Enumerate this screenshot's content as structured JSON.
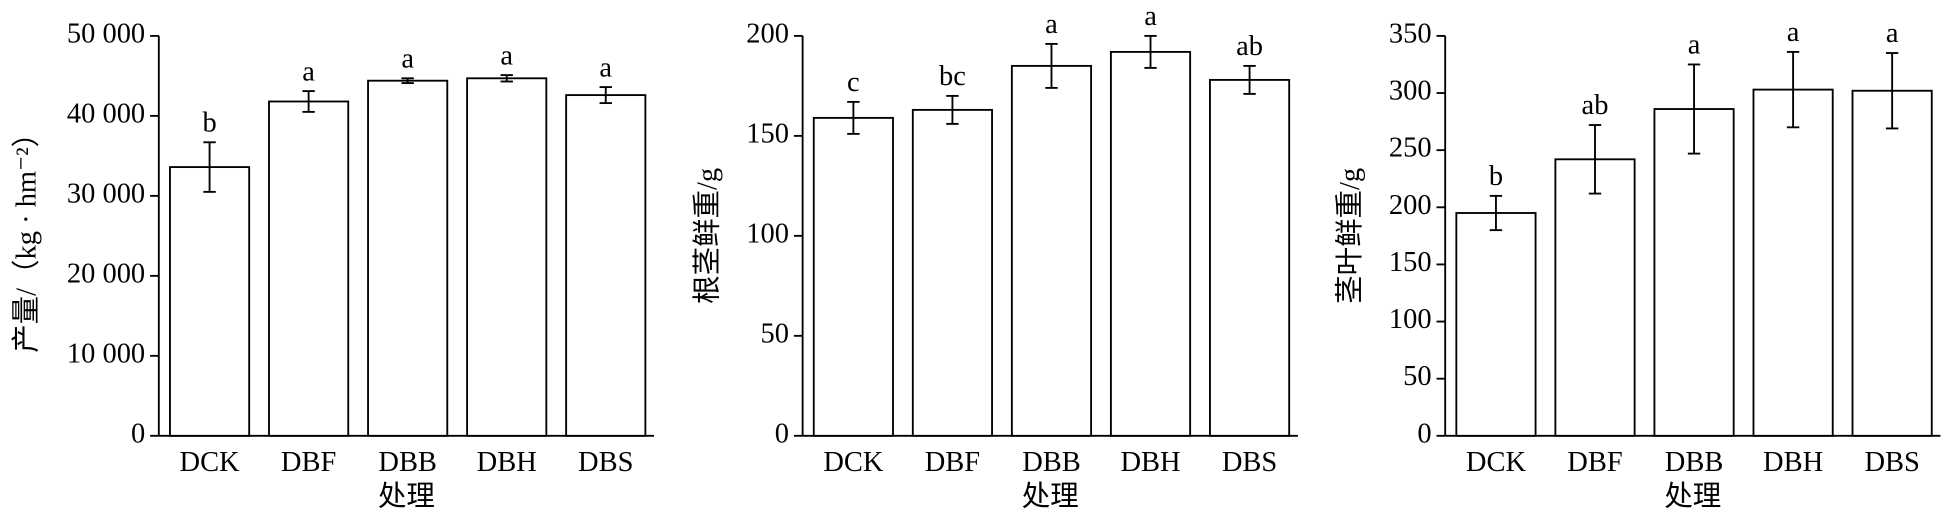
{
  "chart_data": [
    {
      "type": "bar",
      "y_label": "产量/（kg · hm⁻²）",
      "x_label": "处理",
      "categories": [
        "DCK",
        "DBF",
        "DBB",
        "DBH",
        "DBS"
      ],
      "values": [
        33600,
        41800,
        44400,
        44700,
        42600
      ],
      "errors": [
        3100,
        1300,
        300,
        400,
        1000
      ],
      "annotations": [
        "b",
        "a",
        "a",
        "a",
        "a"
      ],
      "color": "#ffffff",
      "ylim": [
        0,
        50000
      ],
      "yticks": [
        0,
        {
          "value": 10000,
          "label": "10 000"
        },
        {
          "value": 20000,
          "label": "20 000"
        },
        {
          "value": 30000,
          "label": "30 000"
        },
        {
          "value": 40000,
          "label": "40 000"
        },
        {
          "value": 50000,
          "label": "50 000"
        }
      ]
    },
    {
      "type": "bar",
      "y_label": "根茎鲜重/g",
      "x_label": "处理",
      "categories": [
        "DCK",
        "DBF",
        "DBB",
        "DBH",
        "DBS"
      ],
      "values": [
        159,
        163,
        185,
        192,
        178
      ],
      "errors": [
        8,
        7,
        11,
        8,
        7
      ],
      "annotations": [
        "c",
        "bc",
        "a",
        "a",
        "ab"
      ],
      "color": "#ffffff",
      "ylim": [
        0,
        200
      ],
      "yticks": [
        0,
        50,
        100,
        150,
        200
      ]
    },
    {
      "type": "bar",
      "y_label": "茎叶鲜重/g",
      "x_label": "处理",
      "categories": [
        "DCK",
        "DBF",
        "DBB",
        "DBH",
        "DBS"
      ],
      "values": [
        195,
        242,
        286,
        303,
        302
      ],
      "errors": [
        15,
        30,
        39,
        33,
        33
      ],
      "annotations": [
        "b",
        "ab",
        "a",
        "a",
        "a"
      ],
      "color": "#ffffff",
      "ylim": [
        0,
        350
      ],
      "yticks": [
        0,
        50,
        100,
        150,
        200,
        250,
        300,
        350
      ]
    }
  ]
}
